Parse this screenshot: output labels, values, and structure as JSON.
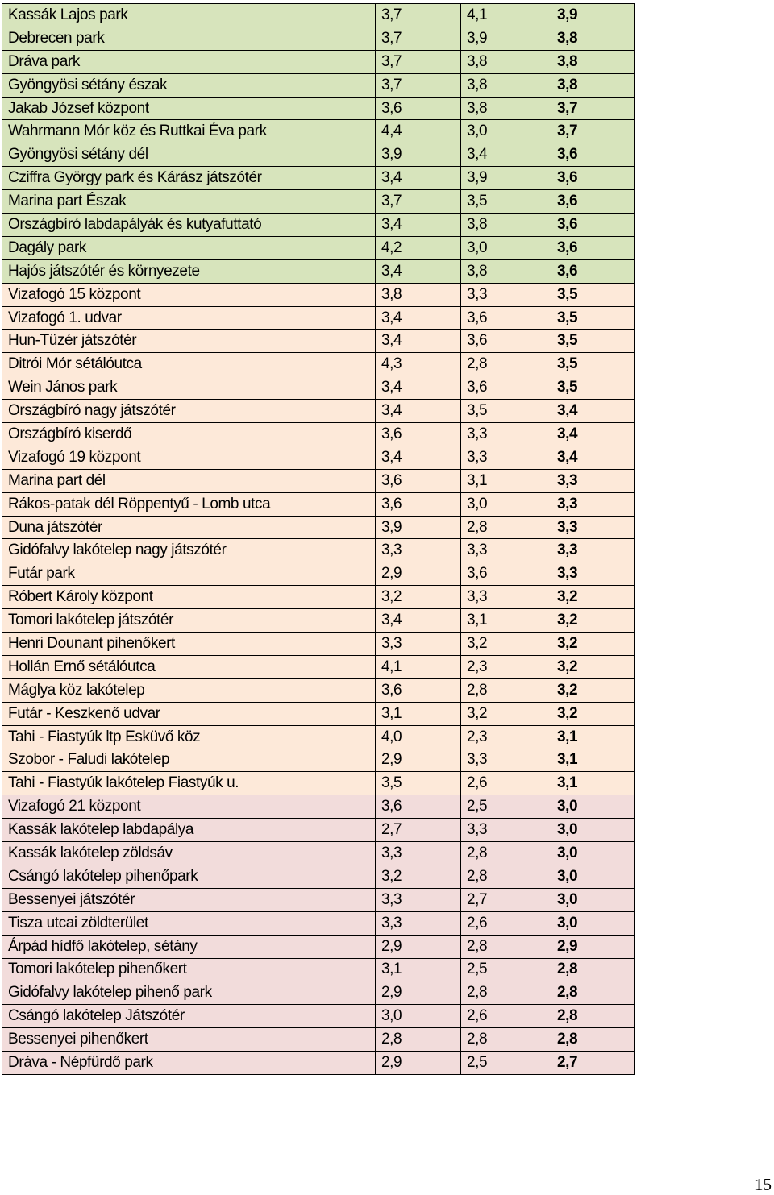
{
  "colors": {
    "tier_green": "#d7e4bc",
    "tier_peach": "#fde9d9",
    "tier_pink": "#f2dcdb"
  },
  "table": {
    "rows": [
      {
        "name": "Kassák Lajos park",
        "a": "3,7",
        "b": "4,1",
        "avg": "3,9",
        "tier": "green"
      },
      {
        "name": "Debrecen park",
        "a": "3,7",
        "b": "3,9",
        "avg": "3,8",
        "tier": "green"
      },
      {
        "name": "Dráva park",
        "a": "3,7",
        "b": "3,8",
        "avg": "3,8",
        "tier": "green"
      },
      {
        "name": "Gyöngyösi sétány észak",
        "a": "3,7",
        "b": "3,8",
        "avg": "3,8",
        "tier": "green"
      },
      {
        "name": "Jakab József központ",
        "a": "3,6",
        "b": "3,8",
        "avg": "3,7",
        "tier": "green"
      },
      {
        "name": "Wahrmann Mór köz és Ruttkai Éva park",
        "a": "4,4",
        "b": "3,0",
        "avg": "3,7",
        "tier": "green"
      },
      {
        "name": "Gyöngyösi sétány dél",
        "a": "3,9",
        "b": "3,4",
        "avg": "3,6",
        "tier": "green"
      },
      {
        "name": "Cziffra György park és Kárász játszótér",
        "a": "3,4",
        "b": "3,9",
        "avg": "3,6",
        "tier": "green"
      },
      {
        "name": "Marina part Észak",
        "a": "3,7",
        "b": "3,5",
        "avg": "3,6",
        "tier": "green"
      },
      {
        "name": "Országbíró labdapályák és kutyafuttató",
        "a": "3,4",
        "b": "3,8",
        "avg": "3,6",
        "tier": "green"
      },
      {
        "name": "Dagály park",
        "a": "4,2",
        "b": "3,0",
        "avg": "3,6",
        "tier": "green"
      },
      {
        "name": "Hajós játszótér és környezete",
        "a": "3,4",
        "b": "3,8",
        "avg": "3,6",
        "tier": "green"
      },
      {
        "name": "Vizafogó 15 központ",
        "a": "3,8",
        "b": "3,3",
        "avg": "3,5",
        "tier": "peach"
      },
      {
        "name": "Vizafogó 1. udvar",
        "a": "3,4",
        "b": "3,6",
        "avg": "3,5",
        "tier": "peach"
      },
      {
        "name": "Hun-Tüzér játszótér",
        "a": "3,4",
        "b": "3,6",
        "avg": "3,5",
        "tier": "peach"
      },
      {
        "name": "Ditrói Mór sétálóutca",
        "a": "4,3",
        "b": "2,8",
        "avg": "3,5",
        "tier": "peach"
      },
      {
        "name": "Wein János park",
        "a": "3,4",
        "b": "3,6",
        "avg": "3,5",
        "tier": "peach"
      },
      {
        "name": "Országbíró nagy játszótér",
        "a": "3,4",
        "b": "3,5",
        "avg": "3,4",
        "tier": "peach"
      },
      {
        "name": "Országbíró kiserdő",
        "a": "3,6",
        "b": "3,3",
        "avg": "3,4",
        "tier": "peach"
      },
      {
        "name": "Vizafogó 19 központ",
        "a": "3,4",
        "b": "3,3",
        "avg": "3,4",
        "tier": "peach"
      },
      {
        "name": "Marina part dél",
        "a": "3,6",
        "b": "3,1",
        "avg": "3,3",
        "tier": "peach"
      },
      {
        "name": "Rákos-patak dél Röppentyű - Lomb utca",
        "a": "3,6",
        "b": "3,0",
        "avg": "3,3",
        "tier": "peach"
      },
      {
        "name": "Duna játszótér",
        "a": "3,9",
        "b": "2,8",
        "avg": "3,3",
        "tier": "peach"
      },
      {
        "name": "Gidófalvy lakótelep nagy játszótér",
        "a": "3,3",
        "b": "3,3",
        "avg": "3,3",
        "tier": "peach"
      },
      {
        "name": "Futár park",
        "a": "2,9",
        "b": "3,6",
        "avg": "3,3",
        "tier": "peach"
      },
      {
        "name": "Róbert Károly központ",
        "a": "3,2",
        "b": "3,3",
        "avg": "3,2",
        "tier": "peach"
      },
      {
        "name": "Tomori lakótelep játszótér",
        "a": "3,4",
        "b": "3,1",
        "avg": "3,2",
        "tier": "peach"
      },
      {
        "name": "Henri Dounant pihenőkert",
        "a": "3,3",
        "b": "3,2",
        "avg": "3,2",
        "tier": "peach"
      },
      {
        "name": "Hollán Ernő sétálóutca",
        "a": "4,1",
        "b": "2,3",
        "avg": "3,2",
        "tier": "peach"
      },
      {
        "name": "Máglya köz lakótelep",
        "a": "3,6",
        "b": "2,8",
        "avg": "3,2",
        "tier": "peach"
      },
      {
        "name": "Futár - Keszkenő udvar",
        "a": "3,1",
        "b": "3,2",
        "avg": "3,2",
        "tier": "peach"
      },
      {
        "name": "Tahi - Fiastyúk ltp Esküvő köz",
        "a": "4,0",
        "b": "2,3",
        "avg": "3,1",
        "tier": "peach"
      },
      {
        "name": "Szobor - Faludi lakótelep",
        "a": "2,9",
        "b": "3,3",
        "avg": "3,1",
        "tier": "peach"
      },
      {
        "name": "Tahi - Fiastyúk lakótelep Fiastyúk u.",
        "a": "3,5",
        "b": "2,6",
        "avg": "3,1",
        "tier": "peach"
      },
      {
        "name": "Vizafogó 21 központ",
        "a": "3,6",
        "b": "2,5",
        "avg": "3,0",
        "tier": "pink"
      },
      {
        "name": "Kassák lakótelep labdapálya",
        "a": "2,7",
        "b": "3,3",
        "avg": "3,0",
        "tier": "pink"
      },
      {
        "name": "Kassák lakótelep zöldsáv",
        "a": "3,3",
        "b": "2,8",
        "avg": "3,0",
        "tier": "pink"
      },
      {
        "name": "Csángó lakótelep pihenőpark",
        "a": "3,2",
        "b": "2,8",
        "avg": "3,0",
        "tier": "pink"
      },
      {
        "name": "Bessenyei játszótér",
        "a": "3,3",
        "b": "2,7",
        "avg": "3,0",
        "tier": "pink"
      },
      {
        "name": "Tisza utcai zöldterület",
        "a": "3,3",
        "b": "2,6",
        "avg": "3,0",
        "tier": "pink"
      },
      {
        "name": "Árpád hídfő lakótelep, sétány",
        "a": "2,9",
        "b": "2,8",
        "avg": "2,9",
        "tier": "pink"
      },
      {
        "name": "Tomori lakótelep pihenőkert",
        "a": "3,1",
        "b": "2,5",
        "avg": "2,8",
        "tier": "pink"
      },
      {
        "name": "Gidófalvy lakótelep pihenő park",
        "a": "2,9",
        "b": "2,8",
        "avg": "2,8",
        "tier": "pink"
      },
      {
        "name": "Csángó lakótelep Játszótér",
        "a": "3,0",
        "b": "2,6",
        "avg": "2,8",
        "tier": "pink"
      },
      {
        "name": "Bessenyei pihenőkert",
        "a": "2,8",
        "b": "2,8",
        "avg": "2,8",
        "tier": "pink"
      },
      {
        "name": "Dráva - Népfürdő park",
        "a": "2,9",
        "b": "2,5",
        "avg": "2,7",
        "tier": "pink"
      }
    ]
  },
  "page_number": "15"
}
